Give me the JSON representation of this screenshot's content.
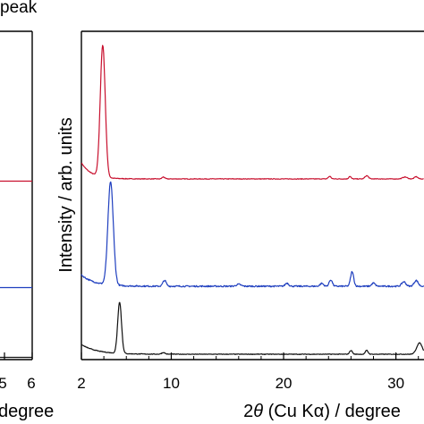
{
  "left_panel": {
    "title_fragment": "peak",
    "xlabel_fragment": "degree",
    "tick_labels": [
      "5",
      "6"
    ]
  },
  "chart_data": {
    "type": "line",
    "xlabel": "2θ (Cu Kα) / degree",
    "xlabel_parts": {
      "prefix": "2",
      "theta": "θ",
      "rest": " (Cu K",
      "alpha": "α",
      "suffix": ") / degree"
    },
    "ylabel": "Intensity / arb. units",
    "xlim": [
      2,
      32.5
    ],
    "xticks": [
      2,
      10,
      20,
      30
    ],
    "series": [
      {
        "color": "#c8102e",
        "baseline": 0.12,
        "noise": 0.01,
        "peaks": [
          [
            3.9,
            4.1,
            0.22
          ],
          [
            9.3,
            0.06,
            0.12
          ],
          [
            24.1,
            0.08,
            0.12
          ],
          [
            25.9,
            0.08,
            0.1
          ],
          [
            27.4,
            0.1,
            0.15
          ],
          [
            30.8,
            0.06,
            0.2
          ],
          [
            31.8,
            0.07,
            0.15
          ]
        ],
        "background": [
          [
            2.0,
            0.5,
            0.9
          ]
        ]
      },
      {
        "color": "#1f3fbf",
        "baseline": 0.12,
        "noise": 0.022,
        "peaks": [
          [
            4.6,
            3.2,
            0.24
          ],
          [
            9.4,
            0.18,
            0.15
          ],
          [
            16.0,
            0.06,
            0.2
          ],
          [
            20.3,
            0.1,
            0.15
          ],
          [
            23.4,
            0.09,
            0.15
          ],
          [
            24.2,
            0.2,
            0.14
          ],
          [
            26.1,
            0.45,
            0.14
          ],
          [
            28.0,
            0.1,
            0.15
          ],
          [
            30.7,
            0.14,
            0.18
          ],
          [
            31.8,
            0.18,
            0.18
          ]
        ],
        "background": [
          [
            2.0,
            0.35,
            1.2
          ]
        ]
      },
      {
        "color": "#111111",
        "baseline": 0.12,
        "noise": 0.01,
        "peaks": [
          [
            5.4,
            1.6,
            0.17
          ],
          [
            9.3,
            0.05,
            0.15
          ],
          [
            26.0,
            0.12,
            0.12
          ],
          [
            27.4,
            0.12,
            0.12
          ],
          [
            32.1,
            0.35,
            0.25
          ]
        ],
        "background": [
          [
            2.0,
            0.3,
            1.4
          ]
        ]
      }
    ]
  }
}
